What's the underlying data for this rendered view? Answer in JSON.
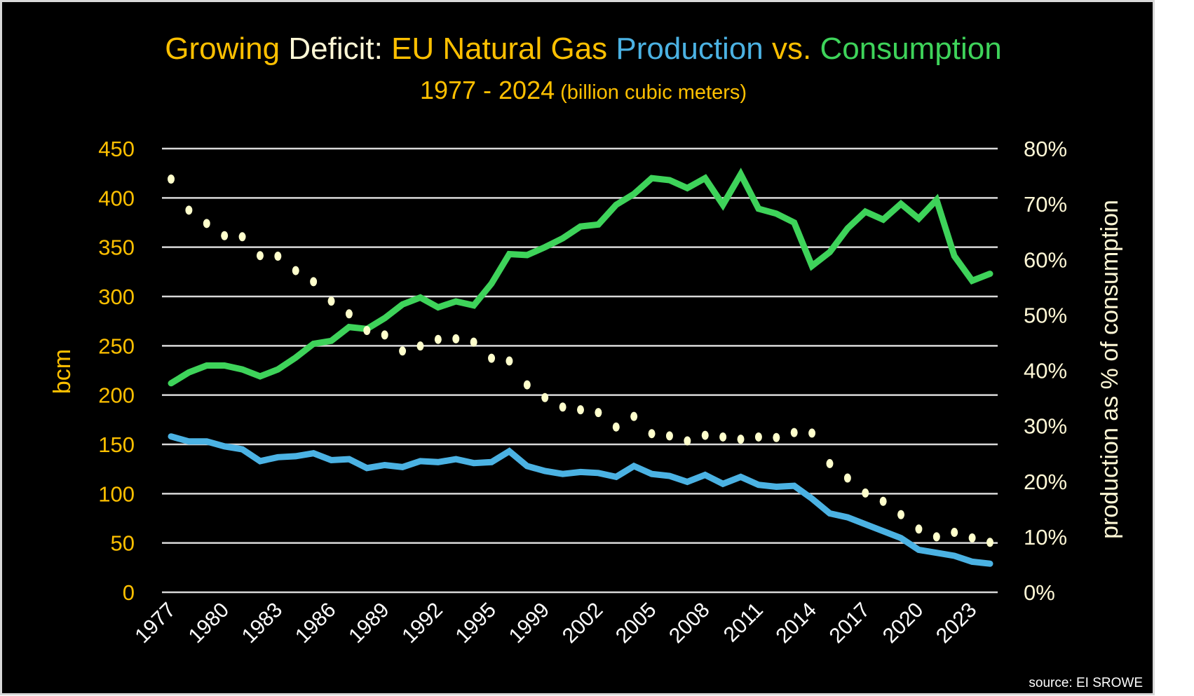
{
  "chart_data": {
    "type": "line",
    "title_parts": [
      "Growing ",
      "Deficit: ",
      "EU Natural Gas ",
      "Production",
      " vs. ",
      "Consumption"
    ],
    "subtitle_main": "1977 - 2024",
    "subtitle_unit": "(billion cubic meters)",
    "ylabel": "bcm",
    "y2label": "production as % of consumption",
    "ylim": [
      0,
      450
    ],
    "y2lim": [
      0,
      80
    ],
    "yticks": [
      "0",
      "50",
      "100",
      "150",
      "200",
      "250",
      "300",
      "350",
      "400",
      "450"
    ],
    "y2ticks": [
      "0%",
      "10%",
      "20%",
      "30%",
      "40%",
      "50%",
      "60%",
      "70%",
      "80%"
    ],
    "grid": true,
    "source": "source: EI SROWE",
    "x": [
      "1977",
      "1978",
      "1979",
      "1980",
      "1981",
      "1982",
      "1983",
      "1984",
      "1985",
      "1986",
      "1987",
      "1988",
      "1989",
      "1990",
      "1991",
      "1992",
      "1993",
      "1994",
      "1995",
      "1997",
      "1998",
      "1999",
      "2000",
      "2001",
      "2002",
      "2003",
      "2004",
      "2005",
      "2006",
      "2007",
      "2008",
      "2009",
      "2010",
      "2011",
      "2012",
      "2013",
      "2014",
      "2015",
      "2016",
      "2017",
      "2018",
      "2019",
      "2020",
      "2021",
      "2022",
      "2023",
      "2024"
    ],
    "xtick_labels": [
      "1977",
      "1980",
      "1983",
      "1986",
      "1989",
      "1992",
      "1995",
      "1999",
      "2002",
      "2005",
      "2008",
      "2011",
      "2014",
      "2017",
      "2020",
      "2023"
    ],
    "series": [
      {
        "name": "Consumption",
        "axis": "left",
        "color": "#3ed35a",
        "values": [
          212,
          223,
          230,
          230,
          226,
          219,
          226,
          238,
          252,
          255,
          269,
          267,
          278,
          292,
          299,
          289,
          295,
          291,
          313,
          343,
          342,
          350,
          359,
          371,
          373,
          393,
          404,
          420,
          418,
          410,
          420,
          393,
          424,
          389,
          384,
          375,
          331,
          345,
          369,
          386,
          378,
          394,
          379,
          398,
          341,
          316,
          323
        ]
      },
      {
        "name": "Production",
        "axis": "left",
        "color": "#4bb2e3",
        "values": [
          158,
          153,
          153,
          148,
          145,
          133,
          137,
          138,
          141,
          134,
          135,
          126,
          129,
          127,
          133,
          132,
          135,
          131,
          132,
          143,
          128,
          123,
          120,
          122,
          121,
          117,
          128,
          120,
          118,
          112,
          119,
          110,
          117,
          109,
          107,
          108,
          95,
          80,
          76,
          69,
          62,
          55,
          43,
          40,
          37,
          31,
          29
        ]
      },
      {
        "name": "Production as % of consumption",
        "axis": "right",
        "color": "#ffffcc",
        "values": [
          74.5,
          68.9,
          66.5,
          64.3,
          64.1,
          60.7,
          60.6,
          58.0,
          56.0,
          52.5,
          50.2,
          47.2,
          46.4,
          43.5,
          44.4,
          45.6,
          45.7,
          45.1,
          42.2,
          41.7,
          37.4,
          35.1,
          33.4,
          32.9,
          32.4,
          29.8,
          31.7,
          28.6,
          28.2,
          27.3,
          28.3,
          28.0,
          27.6,
          28.0,
          27.9,
          28.8,
          28.7,
          23.2,
          20.6,
          17.9,
          16.4,
          14.0,
          11.4,
          10.0,
          10.8,
          9.8,
          9.0
        ]
      }
    ],
    "colors": {
      "title_orange": "#ffc000",
      "title_cream": "#fff8d6",
      "production": "#4bb2e3",
      "consumption": "#3ed35a",
      "grid": "#d9d9d9"
    }
  }
}
